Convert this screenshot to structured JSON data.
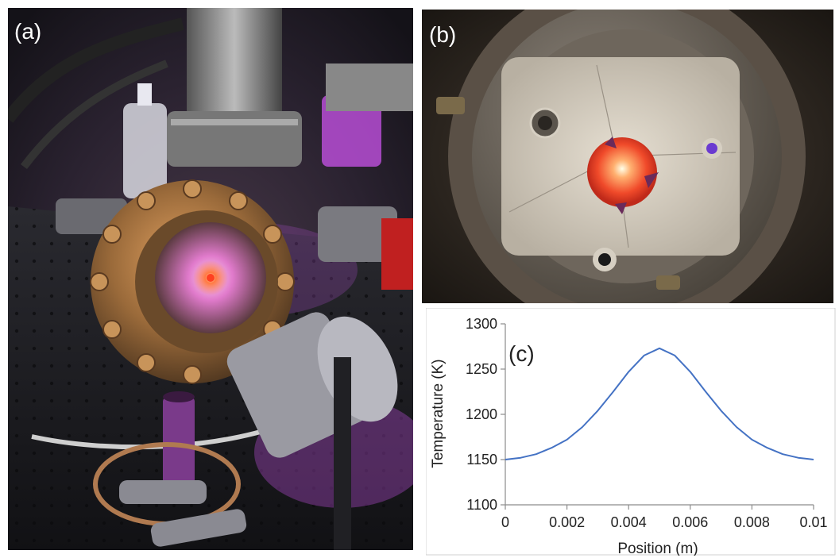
{
  "panels": {
    "a": {
      "label": "(a)"
    },
    "b": {
      "label": "(b)"
    },
    "c": {
      "label": "(c)"
    }
  },
  "colors": {
    "glow": "#ff6a3a",
    "plasma": "#d66bff",
    "line": "#4472c4"
  },
  "chart_data": {
    "type": "line",
    "panel_label": "(c)",
    "xlabel": "Position (m)",
    "ylabel": "Temperature (K)",
    "xlim": [
      0,
      0.01
    ],
    "ylim": [
      1100,
      1300
    ],
    "xticks": [
      "0",
      "0.002",
      "0.004",
      "0.006",
      "0.008",
      "0.01"
    ],
    "yticks": [
      "1100",
      "1150",
      "1200",
      "1250",
      "1300"
    ],
    "grid": false,
    "series": [
      {
        "x": [
          0,
          0.0005,
          0.001,
          0.0015,
          0.002,
          0.0025,
          0.003,
          0.0035,
          0.004,
          0.0045,
          0.005,
          0.0055,
          0.006,
          0.0065,
          0.007,
          0.0075,
          0.008,
          0.0085,
          0.009,
          0.0095,
          0.01
        ],
        "y": [
          1150,
          1152,
          1156,
          1163,
          1172,
          1186,
          1204,
          1225,
          1247,
          1265,
          1273,
          1265,
          1247,
          1225,
          1204,
          1186,
          1172,
          1163,
          1156,
          1152,
          1150
        ]
      }
    ]
  }
}
